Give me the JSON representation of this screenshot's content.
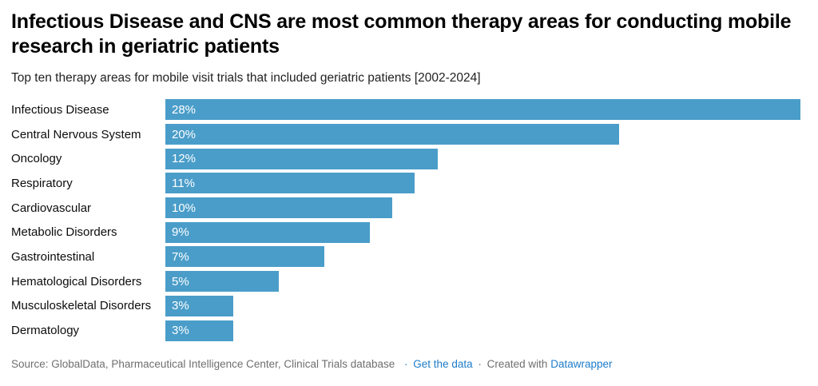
{
  "header": {
    "title": "Infectious Disease and CNS are most common therapy areas for conducting mobile research in geriatric patients",
    "subtitle": "Top ten therapy areas for mobile visit trials that included geriatric patients [2002-2024]"
  },
  "chart_data": {
    "type": "bar",
    "orientation": "horizontal",
    "categories": [
      "Infectious Disease",
      "Central Nervous System",
      "Oncology",
      "Respiratory",
      "Cardiovascular",
      "Metabolic Disorders",
      "Gastrointestinal",
      "Hematological Disorders",
      "Musculoskeletal Disorders",
      "Dermatology"
    ],
    "values": [
      28,
      20,
      12,
      11,
      10,
      9,
      7,
      5,
      3,
      3
    ],
    "value_labels": [
      "28%",
      "20%",
      "12%",
      "11%",
      "10%",
      "9%",
      "7%",
      "5%",
      "3%",
      "3%"
    ],
    "xlim": [
      0,
      28
    ],
    "grid": false,
    "legend": "none",
    "bar_color": "#4a9dc9",
    "value_label_color": "#ffffff",
    "title": "Infectious Disease and CNS are most common therapy areas for conducting mobile research in geriatric patients",
    "xlabel": "",
    "ylabel": ""
  },
  "footer": {
    "source_text": "Source: GlobalData, Pharmaceutical Intelligence Center, Clinical Trials database",
    "separator_1": "·",
    "get_data_label": "Get the data",
    "separator_2": "·",
    "created_with_text": "Created with",
    "datawrapper_label": "Datawrapper",
    "link_color": "#1d7cc9",
    "text_color": "#6f6f6f"
  }
}
